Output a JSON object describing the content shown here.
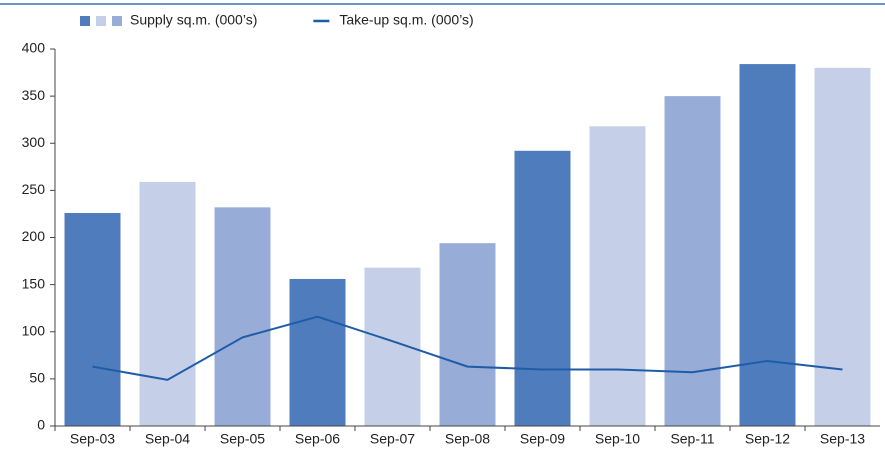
{
  "chart_data": {
    "type": "bar",
    "categories": [
      "Sep-03",
      "Sep-04",
      "Sep-05",
      "Sep-06",
      "Sep-07",
      "Sep-08",
      "Sep-09",
      "Sep-10",
      "Sep-11",
      "Sep-12",
      "Sep-13"
    ],
    "series": [
      {
        "name": "Supply sq.m. (000’s)",
        "type": "bar",
        "colors": [
          "#4f7cbd",
          "#c5d0e8",
          "#98acd8"
        ],
        "values": [
          226,
          259,
          232,
          156,
          168,
          194,
          292,
          318,
          350,
          384,
          380
        ]
      },
      {
        "name": "Take-up sq.m. (000’s)",
        "type": "line",
        "color": "#1f5ca8",
        "values": [
          63,
          49,
          94,
          116,
          90,
          63,
          60,
          60,
          57,
          69,
          60
        ]
      }
    ],
    "ylim": [
      0,
      400
    ],
    "yticks": [
      0,
      50,
      100,
      150,
      200,
      250,
      300,
      350,
      400
    ],
    "grid": false
  }
}
